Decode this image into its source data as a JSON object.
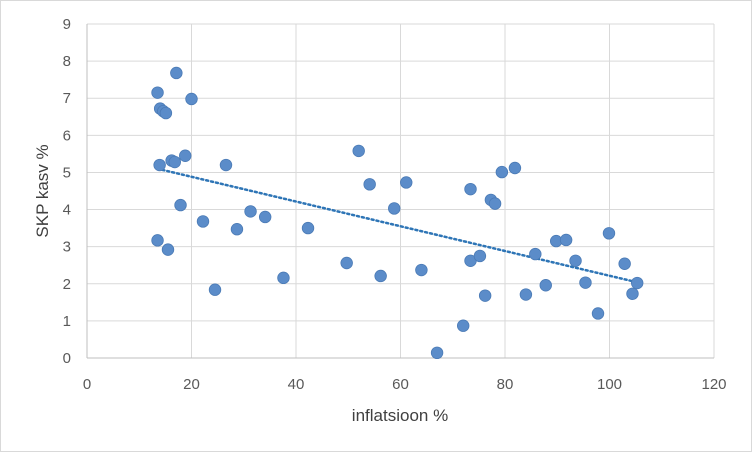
{
  "chart_data": {
    "type": "scatter",
    "title": "",
    "xlabel": "inflatsioon %",
    "ylabel": "SKP kasv %",
    "xlim": [
      0,
      120
    ],
    "ylim": [
      0,
      9
    ],
    "x_ticks": [
      0,
      20,
      40,
      60,
      80,
      100,
      120
    ],
    "y_ticks": [
      0,
      1,
      2,
      3,
      4,
      5,
      6,
      7,
      8,
      9
    ],
    "grid": true,
    "legend": "none",
    "marker_color": "#5b8cc9",
    "marker_edge_color": "#4a7ab5",
    "trendline": {
      "type": "linear",
      "style": "dotted",
      "color": "#2e75b6",
      "x": [
        13.5,
        105
      ],
      "y": [
        5.1,
        2.05
      ]
    },
    "series": [
      {
        "points": [
          [
            13.5,
            7.15
          ],
          [
            14.0,
            6.72
          ],
          [
            14.6,
            6.65
          ],
          [
            15.1,
            6.6
          ],
          [
            17.1,
            7.68
          ],
          [
            20.0,
            6.98
          ],
          [
            13.9,
            5.2
          ],
          [
            16.2,
            5.32
          ],
          [
            16.8,
            5.28
          ],
          [
            18.8,
            5.45
          ],
          [
            26.6,
            5.2
          ],
          [
            17.9,
            4.12
          ],
          [
            22.2,
            3.68
          ],
          [
            13.5,
            3.17
          ],
          [
            15.5,
            2.92
          ],
          [
            24.5,
            1.84
          ],
          [
            28.7,
            3.47
          ],
          [
            31.3,
            3.95
          ],
          [
            34.1,
            3.8
          ],
          [
            37.6,
            2.16
          ],
          [
            42.3,
            3.5
          ],
          [
            49.7,
            2.56
          ],
          [
            52.0,
            5.58
          ],
          [
            54.1,
            4.68
          ],
          [
            56.2,
            2.21
          ],
          [
            58.8,
            4.03
          ],
          [
            61.1,
            4.73
          ],
          [
            64.0,
            2.37
          ],
          [
            67.0,
            0.14
          ],
          [
            72.0,
            0.87
          ],
          [
            73.4,
            4.55
          ],
          [
            73.4,
            2.62
          ],
          [
            75.2,
            2.75
          ],
          [
            76.2,
            1.68
          ],
          [
            77.3,
            4.26
          ],
          [
            78.1,
            4.16
          ],
          [
            79.4,
            5.01
          ],
          [
            81.9,
            5.12
          ],
          [
            84.0,
            1.71
          ],
          [
            85.8,
            2.8
          ],
          [
            87.8,
            1.96
          ],
          [
            89.8,
            3.15
          ],
          [
            91.7,
            3.18
          ],
          [
            93.5,
            2.62
          ],
          [
            95.4,
            2.03
          ],
          [
            97.8,
            1.2
          ],
          [
            99.9,
            3.36
          ],
          [
            102.9,
            2.54
          ],
          [
            104.4,
            1.73
          ],
          [
            105.3,
            2.02
          ]
        ]
      }
    ]
  }
}
